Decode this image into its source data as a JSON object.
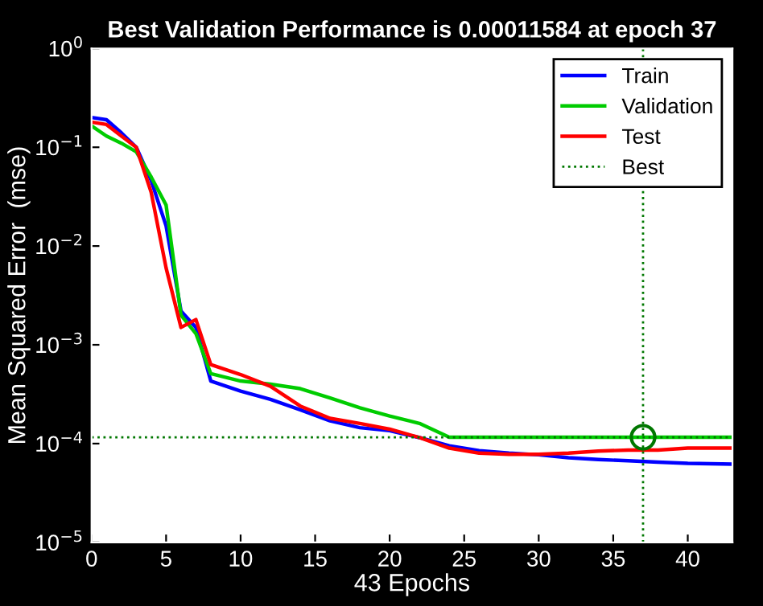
{
  "chart_data": {
    "type": "line",
    "title": "Best Validation Performance is 0.00011584 at epoch 37",
    "xlabel": "43 Epochs",
    "ylabel": "Mean Squared Error  (mse)",
    "log": "y",
    "grid": false,
    "legend": "top right",
    "xlim": [
      0,
      43
    ],
    "xticks": [
      0,
      5,
      10,
      15,
      20,
      25,
      30,
      35,
      40
    ],
    "ylim": [
      1e-05,
      1
    ],
    "yticks": [
      {
        "value": 1e-05,
        "label": "10$^{−5}$"
      },
      {
        "value": 0.0001,
        "label": "10$^{−4}$"
      },
      {
        "value": 0.001,
        "label": "10$^{−3}$"
      },
      {
        "value": 0.01,
        "label": "10$^{−2}$"
      },
      {
        "value": 0.1,
        "label": "10$^{−1}$"
      },
      {
        "value": 1,
        "label": "10$^{0}$"
      }
    ],
    "x": [
      0,
      1,
      2,
      3,
      4,
      5,
      6,
      7,
      8,
      10,
      12,
      14,
      16,
      18,
      20,
      22,
      24,
      26,
      28,
      30,
      32,
      34,
      36,
      38,
      40,
      43
    ],
    "series": [
      {
        "name": "Train",
        "color": "#0000ff",
        "values": [
          0.2,
          0.19,
          0.14,
          0.1,
          0.046,
          0.016,
          0.0022,
          0.0015,
          0.00043,
          0.00034,
          0.00028,
          0.00022,
          0.00017,
          0.000145,
          0.000135,
          0.000115,
          9.5e-05,
          8.5e-05,
          8e-05,
          7.7e-05,
          7.2e-05,
          6.9e-05,
          6.7e-05,
          6.5e-05,
          6.3e-05,
          6.2e-05
        ]
      },
      {
        "name": "Validation",
        "color": "#00cc00",
        "values": [
          0.165,
          0.13,
          0.11,
          0.09,
          0.05,
          0.026,
          0.002,
          0.0013,
          0.00051,
          0.00043,
          0.0004,
          0.00036,
          0.00029,
          0.00023,
          0.00019,
          0.00016,
          0.000116,
          0.000116,
          0.000116,
          0.000116,
          0.000116,
          0.000116,
          0.000116,
          0.000116,
          0.000116,
          0.000116
        ]
      },
      {
        "name": "Test",
        "color": "#ff0000",
        "values": [
          0.18,
          0.17,
          0.13,
          0.1,
          0.035,
          0.006,
          0.0015,
          0.0018,
          0.00063,
          0.0005,
          0.00038,
          0.00024,
          0.00018,
          0.00016,
          0.00014,
          0.000115,
          9e-05,
          8e-05,
          7.8e-05,
          7.8e-05,
          8e-05,
          8.4e-05,
          8.6e-05,
          8.6e-05,
          9e-05,
          9e-05
        ]
      },
      {
        "type": "scatter",
        "color": "#007700",
        "marker": "circle",
        "x": [
          37
        ],
        "values": [
          0.00011584
        ]
      }
    ],
    "ref_lines": [
      {
        "axis": "x",
        "value": 37,
        "label": "Best",
        "color": "#007700",
        "line_style": "dotted"
      },
      {
        "axis": "y",
        "value": 0.00011584,
        "color": "#007700",
        "line_style": "dotted"
      }
    ]
  }
}
